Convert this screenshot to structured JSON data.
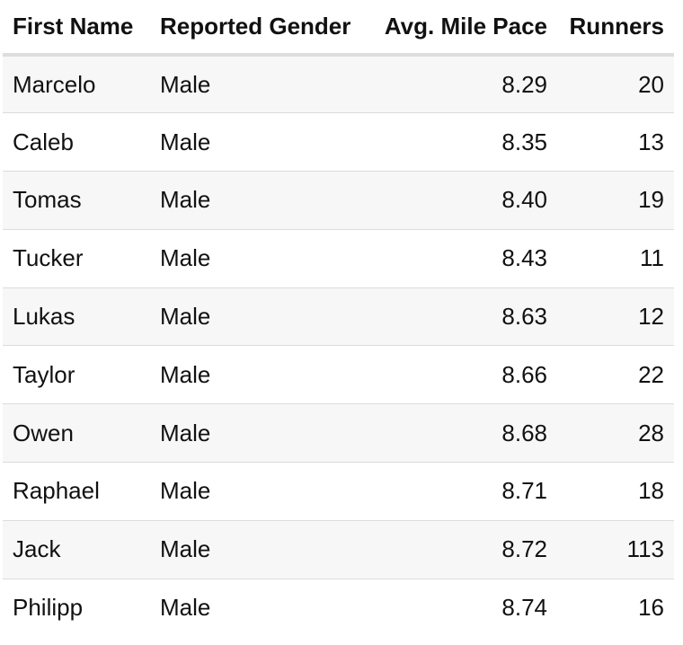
{
  "table": {
    "headers": {
      "first_name": "First Name",
      "reported_gender": "Reported Gender",
      "avg_mile_pace": "Avg. Mile Pace",
      "runners": "Runners"
    },
    "rows": [
      {
        "first_name": "Marcelo",
        "reported_gender": "Male",
        "avg_mile_pace": "8.29",
        "runners": "20"
      },
      {
        "first_name": "Caleb",
        "reported_gender": "Male",
        "avg_mile_pace": "8.35",
        "runners": "13"
      },
      {
        "first_name": "Tomas",
        "reported_gender": "Male",
        "avg_mile_pace": "8.40",
        "runners": "19"
      },
      {
        "first_name": "Tucker",
        "reported_gender": "Male",
        "avg_mile_pace": "8.43",
        "runners": "11"
      },
      {
        "first_name": "Lukas",
        "reported_gender": "Male",
        "avg_mile_pace": "8.63",
        "runners": "12"
      },
      {
        "first_name": "Taylor",
        "reported_gender": "Male",
        "avg_mile_pace": "8.66",
        "runners": "22"
      },
      {
        "first_name": "Owen",
        "reported_gender": "Male",
        "avg_mile_pace": "8.68",
        "runners": "28"
      },
      {
        "first_name": "Raphael",
        "reported_gender": "Male",
        "avg_mile_pace": "8.71",
        "runners": "18"
      },
      {
        "first_name": "Jack",
        "reported_gender": "Male",
        "avg_mile_pace": "8.72",
        "runners": "113"
      },
      {
        "first_name": "Philipp",
        "reported_gender": "Male",
        "avg_mile_pace": "8.74",
        "runners": "16"
      }
    ]
  }
}
